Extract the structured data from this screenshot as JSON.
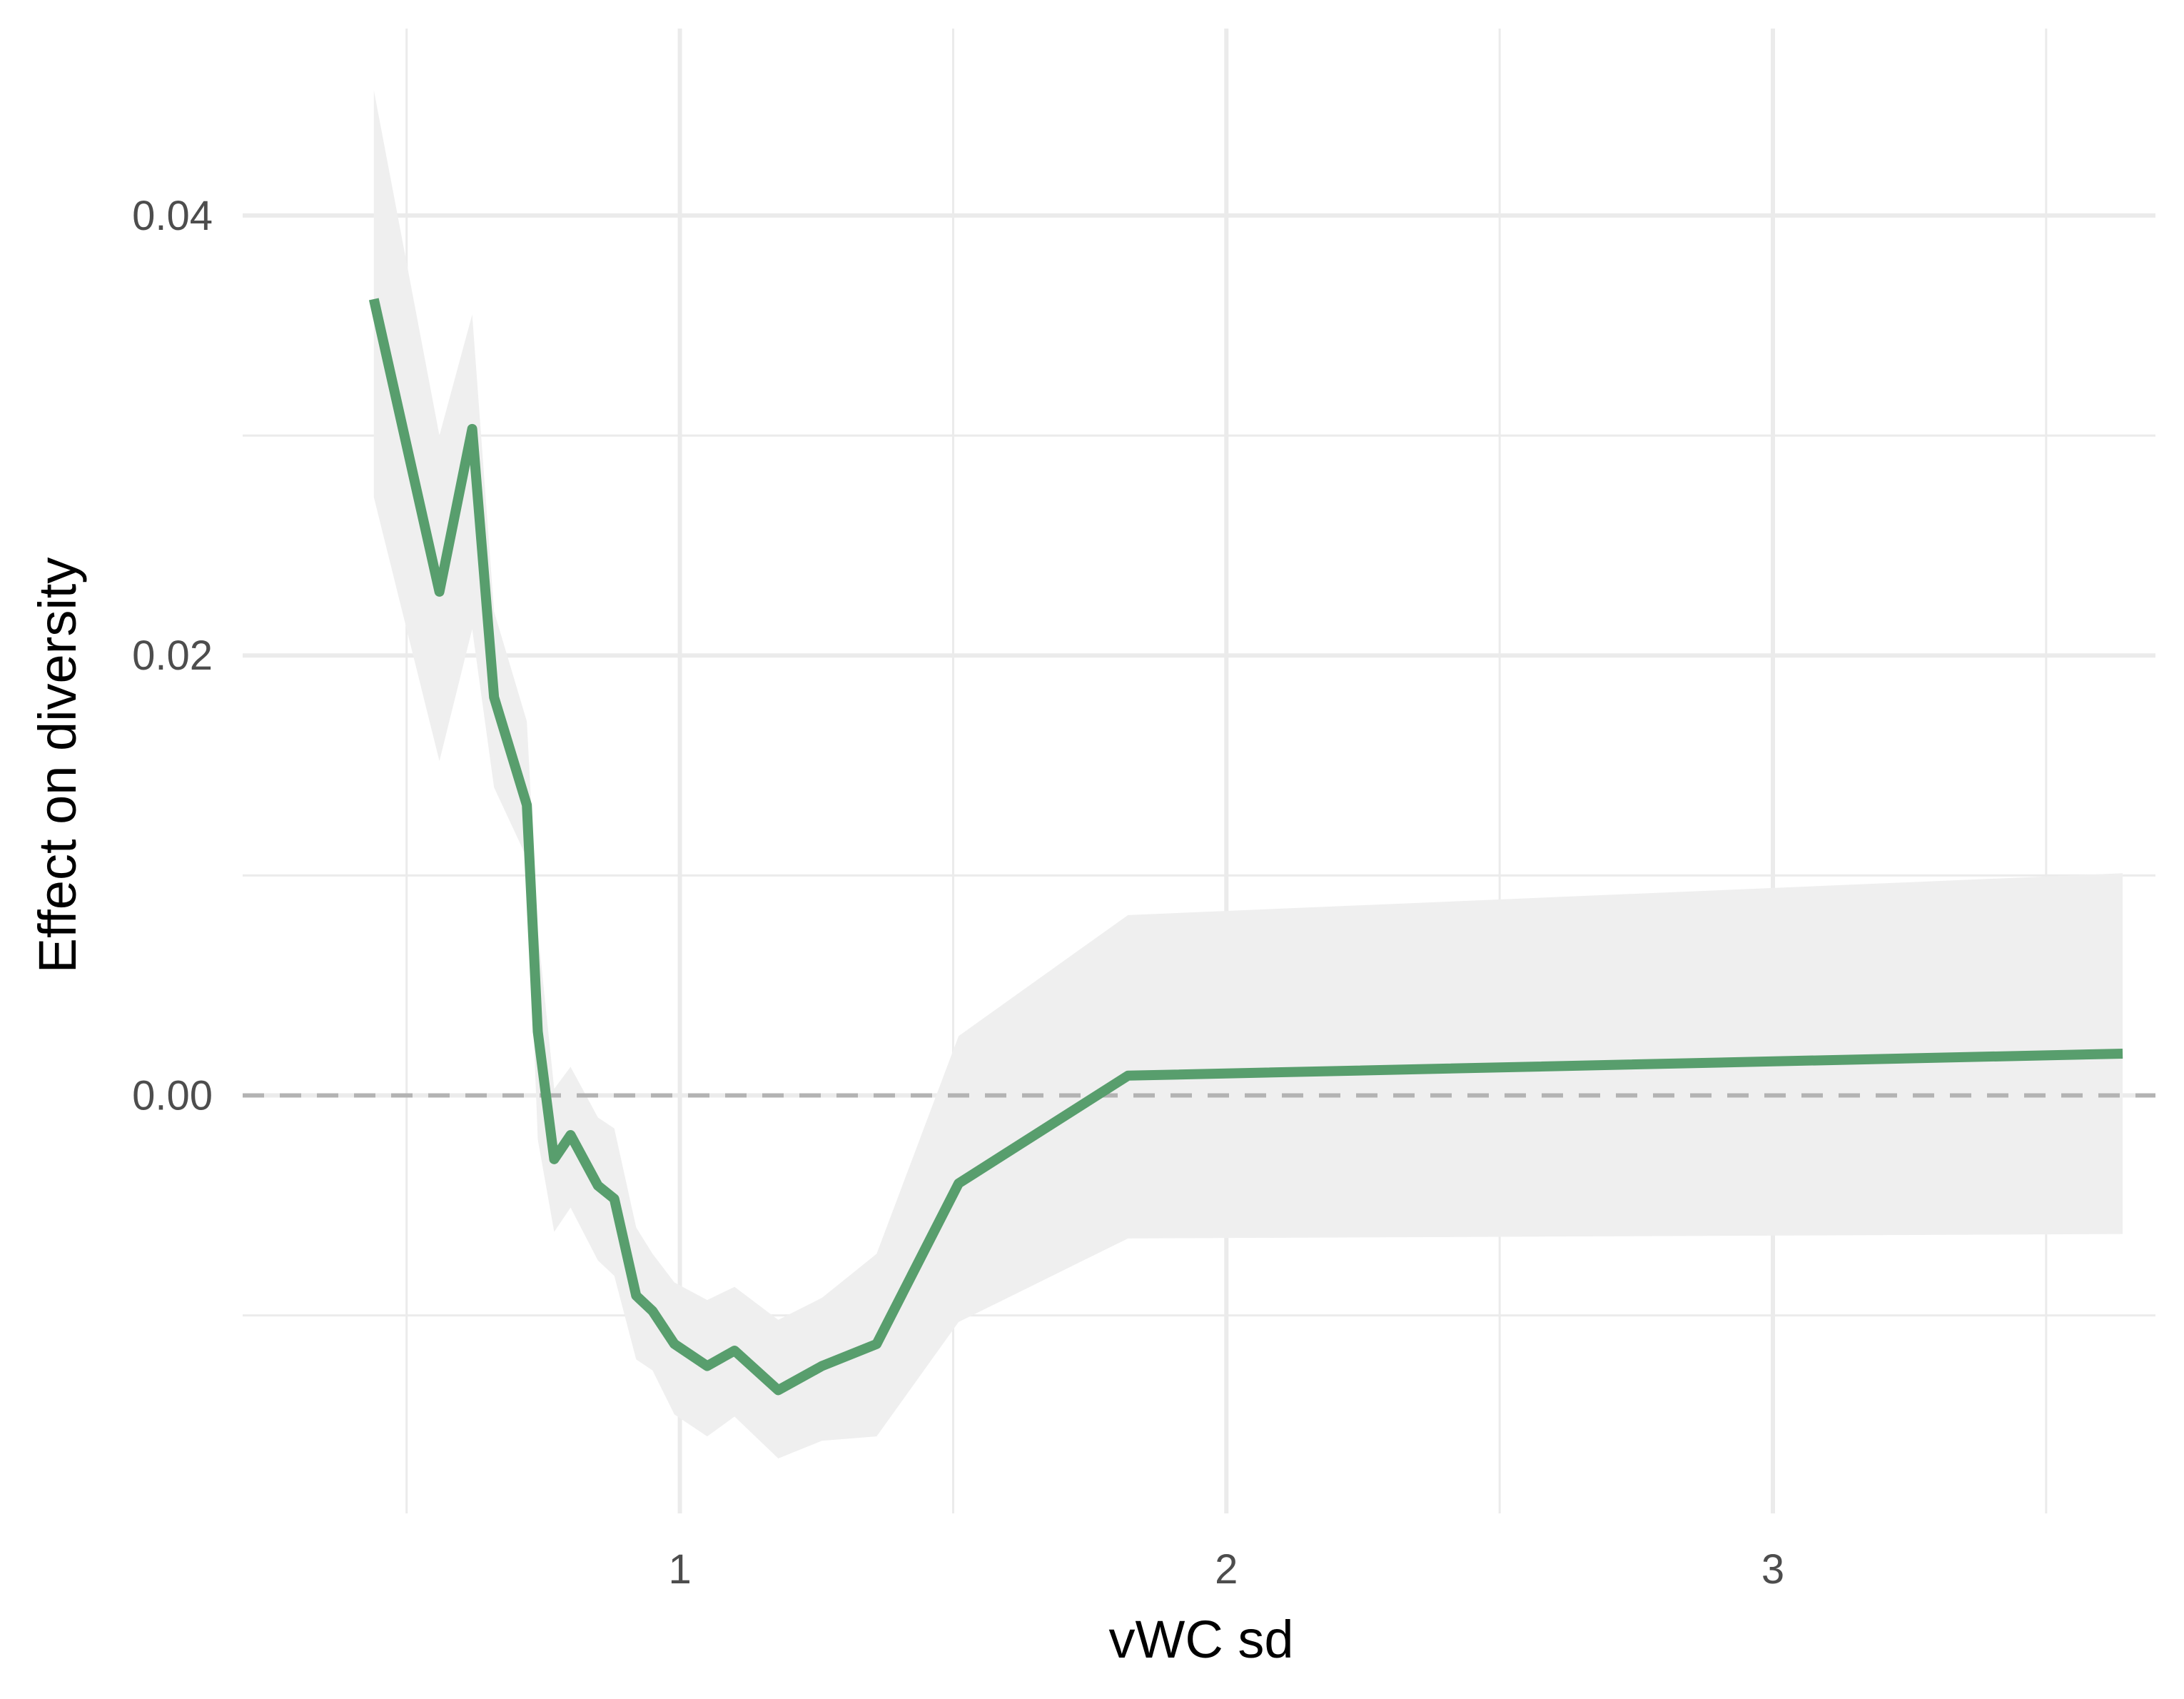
{
  "chart_data": {
    "type": "line",
    "title": "",
    "xlabel": "vWC sd",
    "ylabel": "Effect on diversity",
    "xlim": [
      0.2,
      3.7
    ],
    "ylim": [
      -0.019,
      0.0485
    ],
    "x_ticks": [
      1,
      2,
      3
    ],
    "x_tick_labels": [
      "1",
      "2",
      "3"
    ],
    "x_minor_ticks": [
      0.5,
      1.5,
      2.5,
      3.5
    ],
    "y_ticks": [
      0.0,
      0.02,
      0.04
    ],
    "y_tick_labels": [
      "0.00",
      "0.02",
      "0.04"
    ],
    "y_minor_ticks": [
      -0.01,
      0.01,
      0.03
    ],
    "grid": true,
    "legend": "none",
    "reference_line": {
      "y": 0,
      "style": "dashed",
      "color": "#b3b3b3"
    },
    "series": [
      {
        "color": "#589e6d",
        "band_color": "#efefef",
        "x": [
          0.44,
          0.56,
          0.62,
          0.66,
          0.72,
          0.74,
          0.77,
          0.8,
          0.85,
          0.88,
          0.92,
          0.95,
          0.99,
          1.05,
          1.1,
          1.18,
          1.26,
          1.36,
          1.51,
          1.82,
          3.64
        ],
        "y": [
          0.0362,
          0.0229,
          0.0303,
          0.0181,
          0.0132,
          0.0029,
          -0.0029,
          -0.0018,
          -0.0041,
          -0.0047,
          -0.0091,
          -0.0098,
          -0.0113,
          -0.0123,
          -0.0116,
          -0.0134,
          -0.0123,
          -0.0113,
          -0.004,
          0.0009,
          0.0019
        ],
        "lower": [
          0.0272,
          0.0152,
          0.0212,
          0.014,
          0.0108,
          -0.002,
          -0.0062,
          -0.0051,
          -0.0075,
          -0.0082,
          -0.012,
          -0.0125,
          -0.0145,
          -0.0155,
          -0.0146,
          -0.0165,
          -0.0157,
          -0.0155,
          -0.0103,
          -0.0065,
          -0.0063
        ],
        "upper": [
          0.0457,
          0.03,
          0.0355,
          0.022,
          0.017,
          0.0075,
          0.0003,
          0.0013,
          -0.001,
          -0.0015,
          -0.006,
          -0.0072,
          -0.0085,
          -0.0093,
          -0.0087,
          -0.0102,
          -0.0092,
          -0.0072,
          0.0027,
          0.0082,
          0.0101
        ]
      }
    ]
  }
}
